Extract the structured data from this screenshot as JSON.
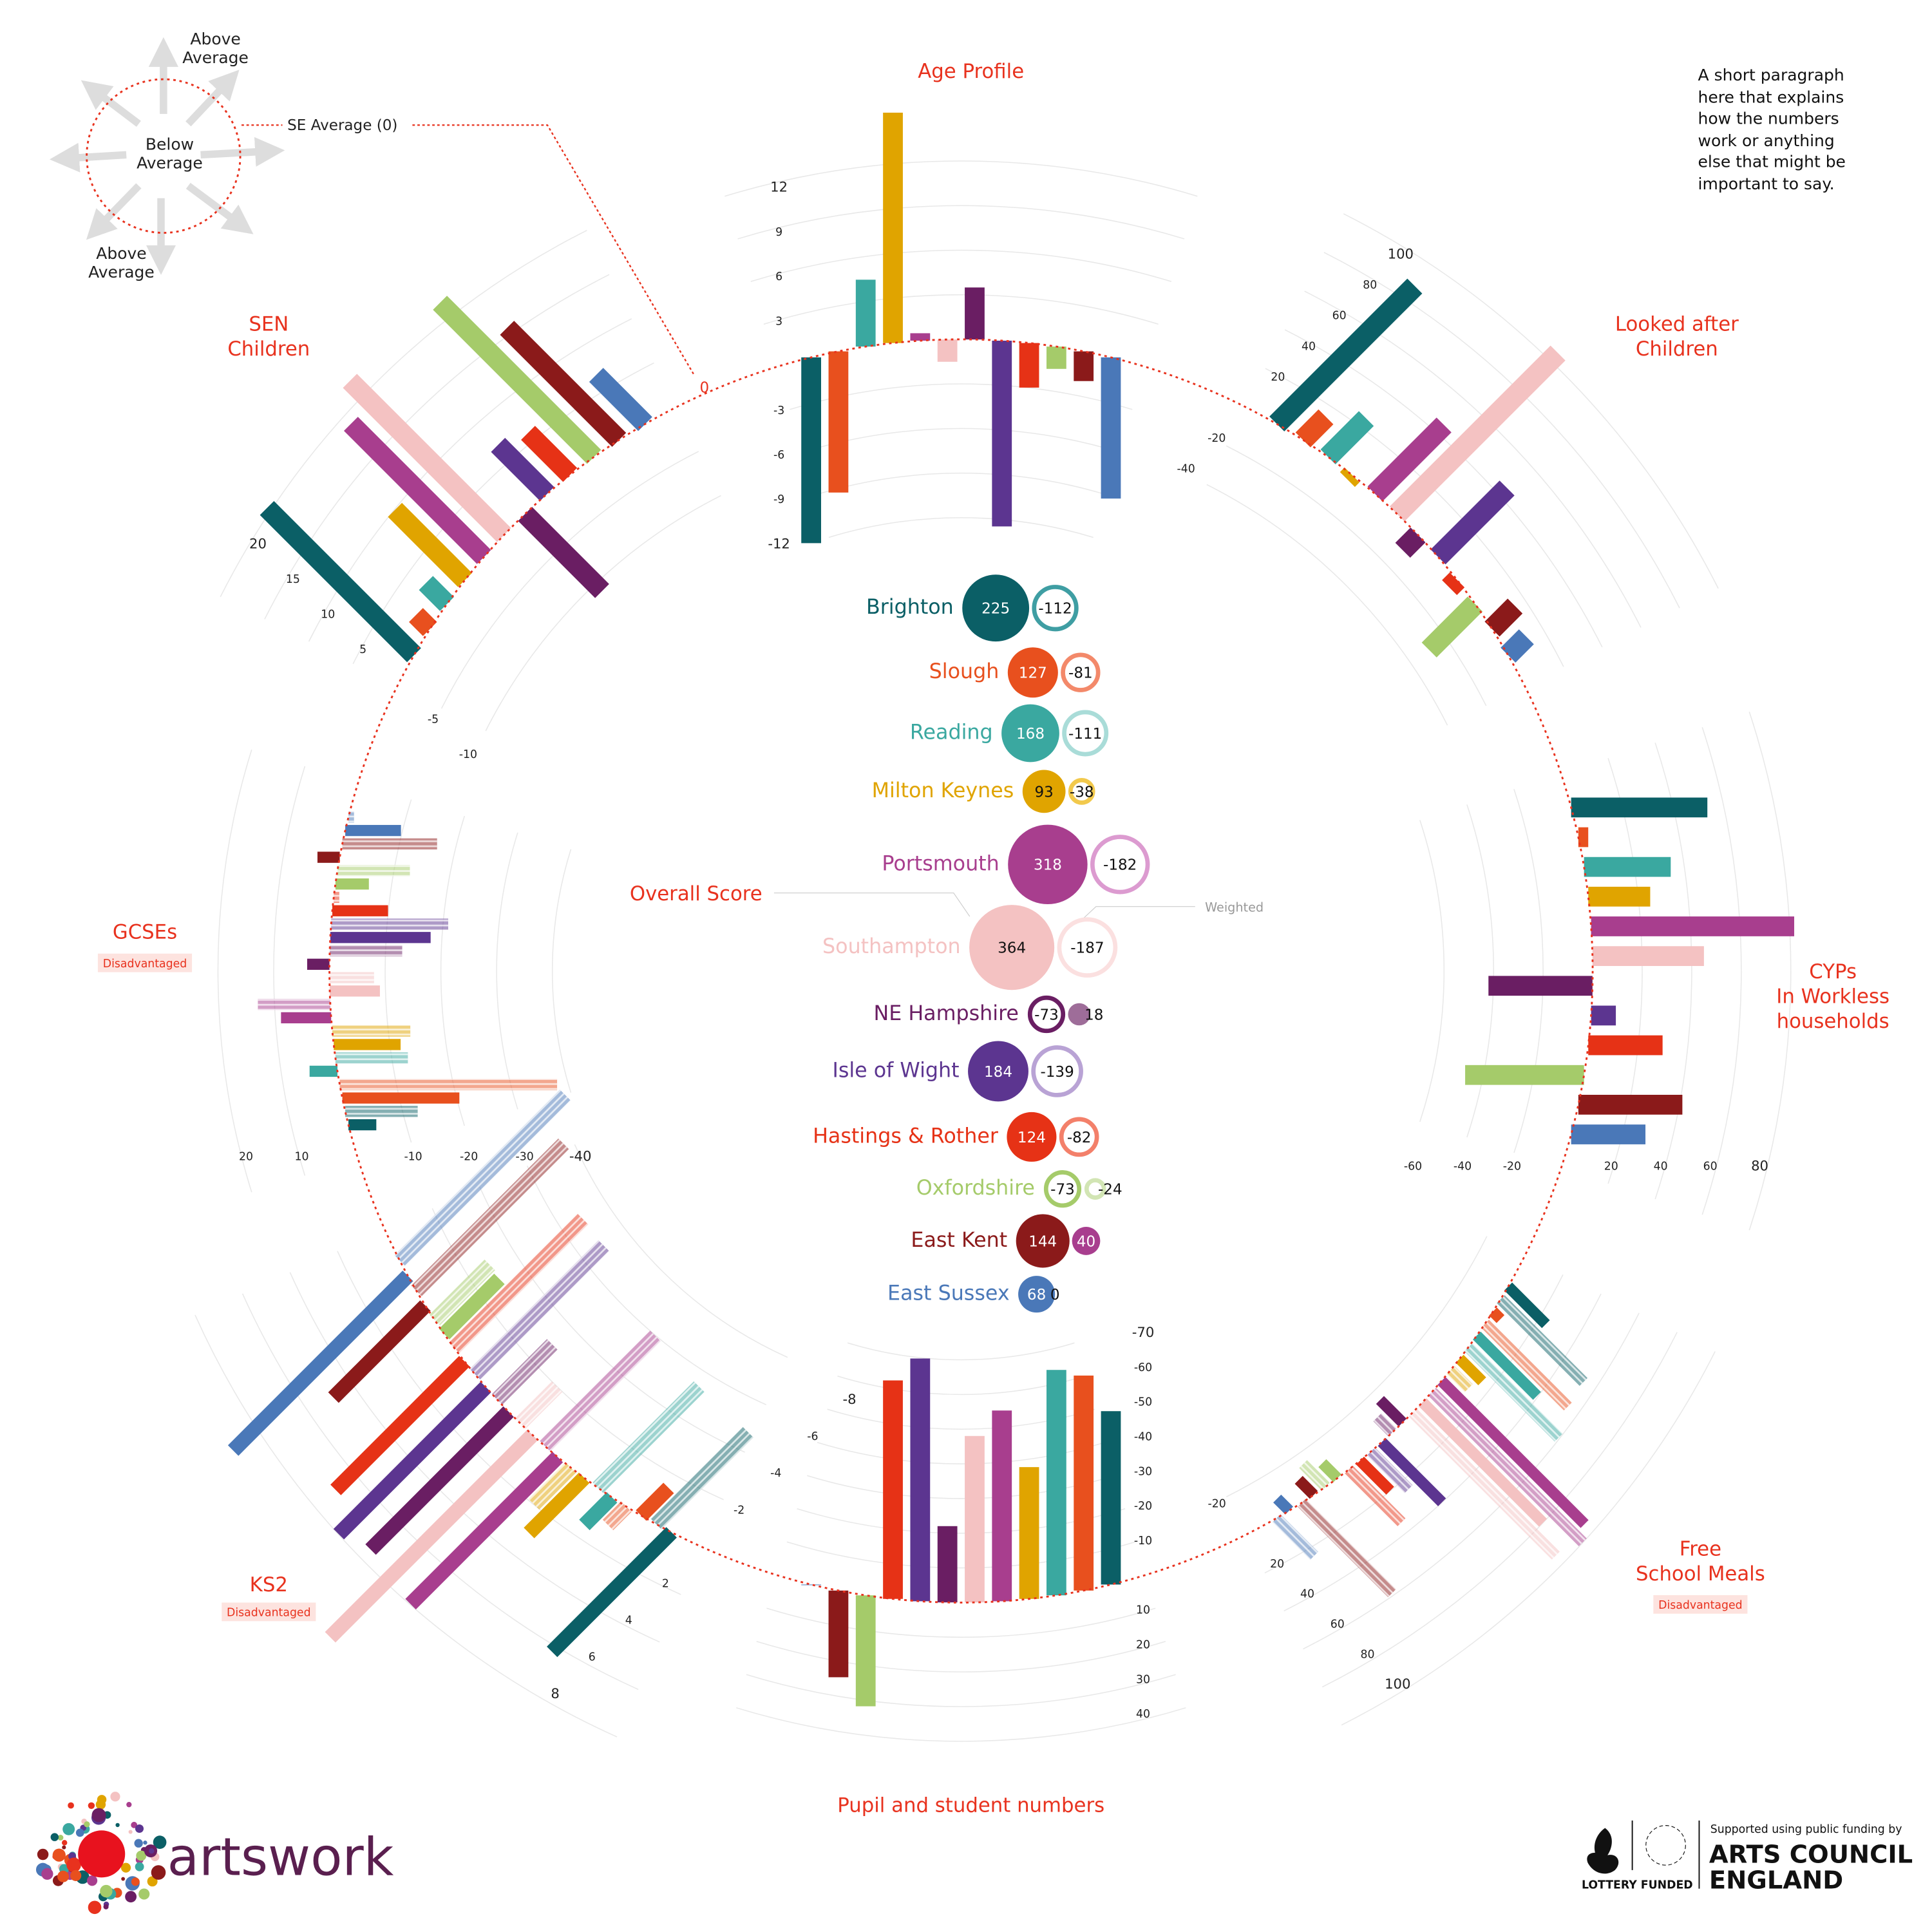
{
  "legend": {
    "above_top": [
      "Above",
      "Average"
    ],
    "below": [
      "Below",
      "Average"
    ],
    "above_bottom": [
      "Above",
      "Average"
    ],
    "se_average": "SE Average (0)",
    "zero_label": "0"
  },
  "note": [
    "A short paragraph",
    "here that explains",
    "how the numbers",
    "work or anything",
    "else that might be",
    "important to say."
  ],
  "overall": {
    "label": "Overall Score",
    "weighted_label": "Weighted",
    "rows": [
      {
        "name": "Brighton",
        "score": 225,
        "weighted": -112
      },
      {
        "name": "Slough",
        "score": 127,
        "weighted": -81
      },
      {
        "name": "Reading",
        "score": 168,
        "weighted": -111
      },
      {
        "name": "Milton Keynes",
        "score": 93,
        "weighted": -38
      },
      {
        "name": "Portsmouth",
        "score": 318,
        "weighted": -182
      },
      {
        "name": "Southampton",
        "score": 364,
        "weighted": -187
      },
      {
        "name": "NE Hampshire",
        "score": -73,
        "weighted": 18
      },
      {
        "name": "Isle of Wight",
        "score": 184,
        "weighted": -139
      },
      {
        "name": "Hastings & Rother",
        "score": 124,
        "weighted": -82
      },
      {
        "name": "Oxfordshire",
        "score": -73,
        "weighted": -24
      },
      {
        "name": "East Kent",
        "score": 144,
        "weighted": 40
      },
      {
        "name": "East Sussex",
        "score": 68,
        "weighted": 0
      }
    ]
  },
  "colors": {
    "accent": "#e8321e",
    "areas": [
      "#0b5f66",
      "#e8501e",
      "#3aa8a0",
      "#e0a400",
      "#a83e8e",
      "#f4c2c2",
      "#6a1e63",
      "#5c3590",
      "#e63216",
      "#a5cb6a",
      "#8b1a1a",
      "#4a78b8"
    ],
    "weighted_rings": [
      "#3f9ea3",
      "#f3896a",
      "#a9dcd8",
      "#f2c94c",
      "#dc9bd0",
      "#fbe0e0",
      "#6a1e63",
      "#b9a3d5",
      "#f3806a",
      "#a5cb6a",
      "#a83e8e",
      "#4a78b8"
    ]
  },
  "chart_data": {
    "type": "radial-bar",
    "areas": [
      "Brighton",
      "Slough",
      "Reading",
      "Milton Keynes",
      "Portsmouth",
      "Southampton",
      "NE Hampshire",
      "Isle of Wight",
      "Hastings & Rother",
      "Oxfordshire",
      "East Kent",
      "East Sussex"
    ],
    "sectors": [
      {
        "key": "age",
        "title": [
          "Age Profile"
        ],
        "ticks": [
          -12,
          -9,
          -6,
          -3,
          3,
          6,
          9,
          12
        ],
        "values": [
          -12.5,
          -9.5,
          4.5,
          15.5,
          0.5,
          -1.5,
          3.5,
          -12.5,
          -3,
          -1.5,
          -2,
          -9.5
        ]
      },
      {
        "key": "lac",
        "title": [
          "Looked after",
          "Children"
        ],
        "ticks": [
          -40,
          -20,
          20,
          40,
          60,
          80,
          100
        ],
        "values": [
          90,
          15,
          25,
          -3,
          45,
          105,
          -10,
          45,
          -5,
          -30,
          15,
          12
        ]
      },
      {
        "key": "cyp",
        "title": [
          "CYPs",
          "In Workless",
          "households"
        ],
        "ticks": [
          -60,
          -40,
          -20,
          20,
          40,
          60,
          80
        ],
        "values": [
          55,
          4,
          35,
          25,
          82,
          45,
          -42,
          10,
          30,
          -48,
          42,
          30
        ]
      },
      {
        "key": "fsm",
        "title": [
          "Free",
          "School Meals"
        ],
        "badge": "Disadvantaged",
        "ticks": [
          -20,
          20,
          40,
          60,
          80,
          100
        ],
        "values": [
          25,
          5,
          40,
          15,
          95,
          80,
          -15,
          40,
          20,
          -10,
          -10,
          -8
        ],
        "values_disadvantaged": [
          55,
          55,
          60,
          12,
          100,
          95,
          -10,
          25,
          35,
          -15,
          60,
          25
        ]
      },
      {
        "key": "pupils",
        "title": [
          "Pupil and student numbers"
        ],
        "ticks": [
          -70,
          -60,
          -50,
          -40,
          -30,
          -20,
          -10,
          10,
          20,
          30,
          40
        ],
        "values": [
          -50,
          -62,
          -65,
          -38,
          -55,
          -48,
          -22,
          -70,
          -63,
          32,
          25,
          0
        ]
      },
      {
        "key": "ks2",
        "title": [
          "KS2"
        ],
        "badge": "Disadvantaged",
        "ticks": [
          -8,
          -6,
          -4,
          -2,
          2,
          4,
          6,
          8
        ],
        "values": [
          6.5,
          -1.5,
          1.5,
          3,
          8,
          11,
          7.5,
          8,
          7,
          -3,
          5,
          9.5
        ],
        "values_disadvantaged": [
          -5,
          1,
          -5.5,
          2,
          -6,
          -2,
          -3,
          -7,
          -7,
          -3,
          -8,
          -9
        ]
      },
      {
        "key": "gcse",
        "title": [
          "GCSEs"
        ],
        "badge": "Disadvantaged",
        "ticks": [
          -40,
          -30,
          -20,
          -10,
          10,
          20
        ],
        "values": [
          -5,
          -21,
          5,
          -12,
          9,
          -9,
          4,
          -18,
          -10,
          -6,
          4,
          -10
        ],
        "values_disadvantaged": [
          -13,
          -39,
          -13,
          -14,
          13,
          -8,
          -13,
          -21,
          -1,
          -13,
          -17,
          -1
        ]
      },
      {
        "key": "sen",
        "title": [
          "SEN",
          "Children"
        ],
        "ticks": [
          -10,
          -5,
          5,
          10,
          15,
          20
        ],
        "values": [
          21,
          2,
          3,
          10,
          19,
          22,
          -11,
          7,
          6,
          22,
          16,
          7
        ]
      }
    ]
  },
  "logos": {
    "artswork": "artswork",
    "supported": "Supported using public funding by",
    "acе_line1": "ARTS COUNCIL",
    "ace_line2": "ENGLAND",
    "lottery": "LOTTERY FUNDED",
    "seal_text": "ARTS COUNCIL ENGLAND"
  }
}
